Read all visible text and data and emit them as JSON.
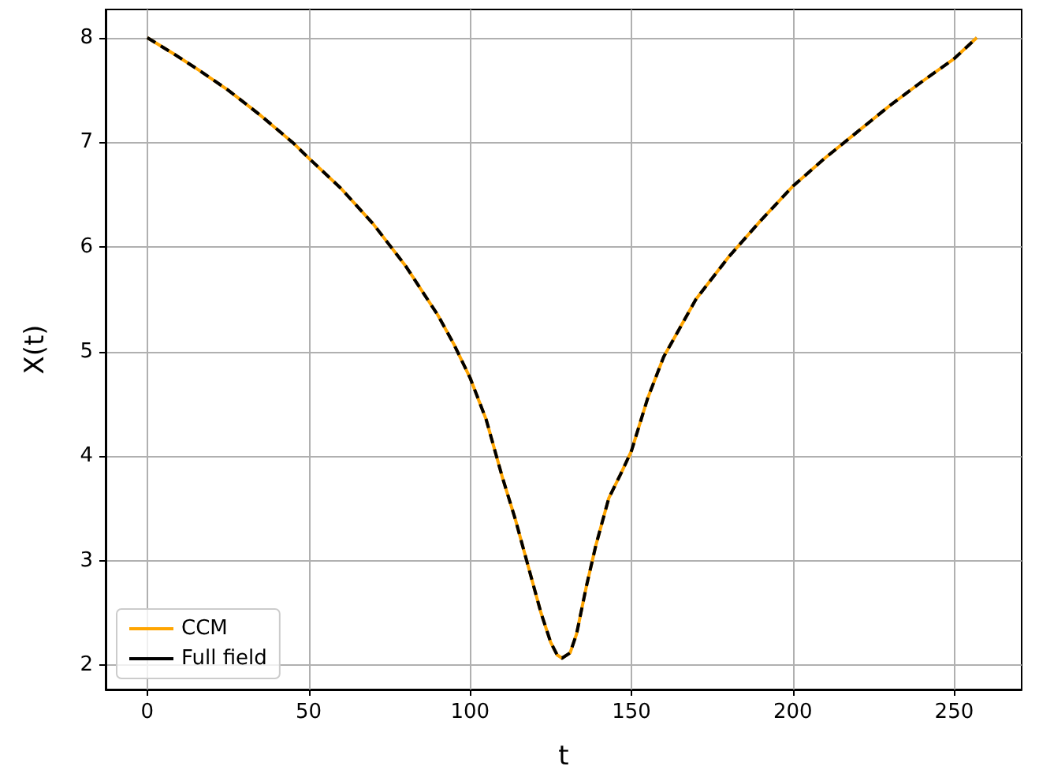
{
  "chart_data": {
    "type": "line",
    "xlabel": "t",
    "ylabel": "X(t)",
    "x": [
      0,
      8,
      16,
      25,
      35,
      45,
      50,
      60,
      70,
      75,
      80,
      90,
      95,
      100,
      105,
      110,
      114,
      118,
      122,
      125,
      127,
      128.5,
      131,
      133,
      136,
      139,
      143,
      147,
      150,
      155,
      160,
      170,
      180,
      190,
      200,
      210,
      220,
      230,
      240,
      250,
      257
    ],
    "series": [
      {
        "name": "CCM",
        "color": "#ffa500",
        "line_style": "solid",
        "values": [
          8.0,
          7.85,
          7.69,
          7.5,
          7.26,
          7.0,
          6.85,
          6.56,
          6.22,
          6.02,
          5.82,
          5.35,
          5.07,
          4.75,
          4.35,
          3.8,
          3.4,
          2.95,
          2.5,
          2.22,
          2.1,
          2.07,
          2.12,
          2.3,
          2.75,
          3.15,
          3.6,
          3.85,
          4.05,
          4.55,
          4.95,
          5.5,
          5.9,
          6.25,
          6.58,
          6.85,
          7.1,
          7.35,
          7.58,
          7.8,
          8.0
        ]
      },
      {
        "name": "Full field",
        "color": "#000000",
        "line_style": "dashed",
        "values": [
          8.0,
          7.85,
          7.69,
          7.5,
          7.26,
          7.0,
          6.85,
          6.56,
          6.22,
          6.02,
          5.82,
          5.35,
          5.07,
          4.75,
          4.35,
          3.8,
          3.4,
          2.95,
          2.5,
          2.22,
          2.1,
          2.07,
          2.12,
          2.3,
          2.75,
          3.15,
          3.6,
          3.85,
          4.05,
          4.55,
          4.95,
          5.5,
          5.9,
          6.25,
          6.58,
          6.85,
          7.1,
          7.35,
          7.58,
          7.8,
          8.0
        ]
      }
    ],
    "xlim": [
      -12.9,
      270.9
    ],
    "xticks": [
      0,
      50,
      100,
      150,
      200,
      250
    ],
    "ylim": [
      1.77,
      8.27
    ],
    "yticks": [
      2,
      3,
      4,
      5,
      6,
      7,
      8
    ],
    "grid": true,
    "legend": "bottom left",
    "marker": "none"
  }
}
